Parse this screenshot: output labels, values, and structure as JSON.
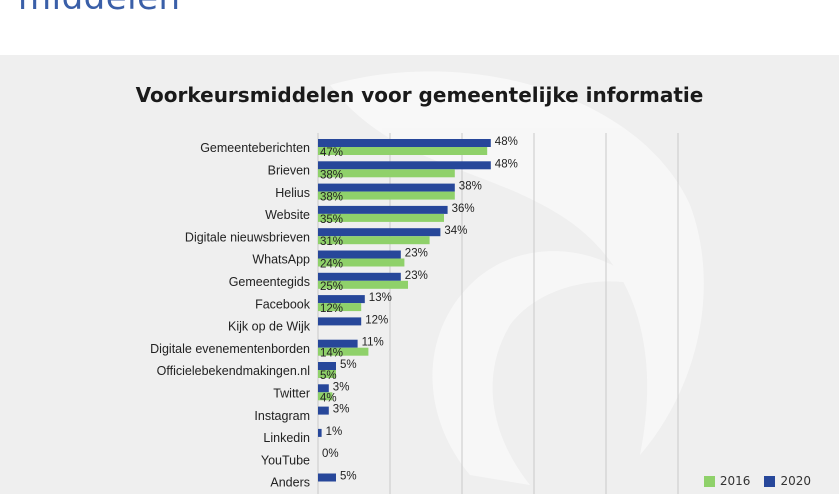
{
  "page": {
    "heading": "middelen"
  },
  "chart_data": {
    "type": "bar",
    "orientation": "horizontal",
    "title": "Voorkeursmiddelen voor gemeentelijke informatie",
    "categories": [
      "Gemeenteberichten",
      "Brieven",
      "Helius",
      "Website",
      "Digitale nieuwsbrieven",
      "WhatsApp",
      "Gemeentegids",
      "Facebook",
      "Kijk op de Wijk",
      "Digitale evenementenborden",
      "Officielebekendmakingen.nl",
      "Twitter",
      "Instagram",
      "Linkedin",
      "YouTube",
      "Anders"
    ],
    "series": [
      {
        "name": "2020",
        "color": "#27479a",
        "values": [
          48,
          48,
          38,
          36,
          34,
          23,
          23,
          13,
          12,
          11,
          5,
          3,
          3,
          1,
          0,
          5
        ]
      },
      {
        "name": "2016",
        "color": "#8fd16a",
        "values": [
          47,
          38,
          38,
          35,
          31,
          24,
          25,
          12,
          null,
          14,
          5,
          4,
          null,
          null,
          null,
          null
        ]
      }
    ],
    "value_suffix": "%",
    "xlim": [
      0,
      100
    ],
    "grid": true,
    "legend": "bottom-right",
    "legend_order": [
      "2016",
      "2020"
    ]
  }
}
